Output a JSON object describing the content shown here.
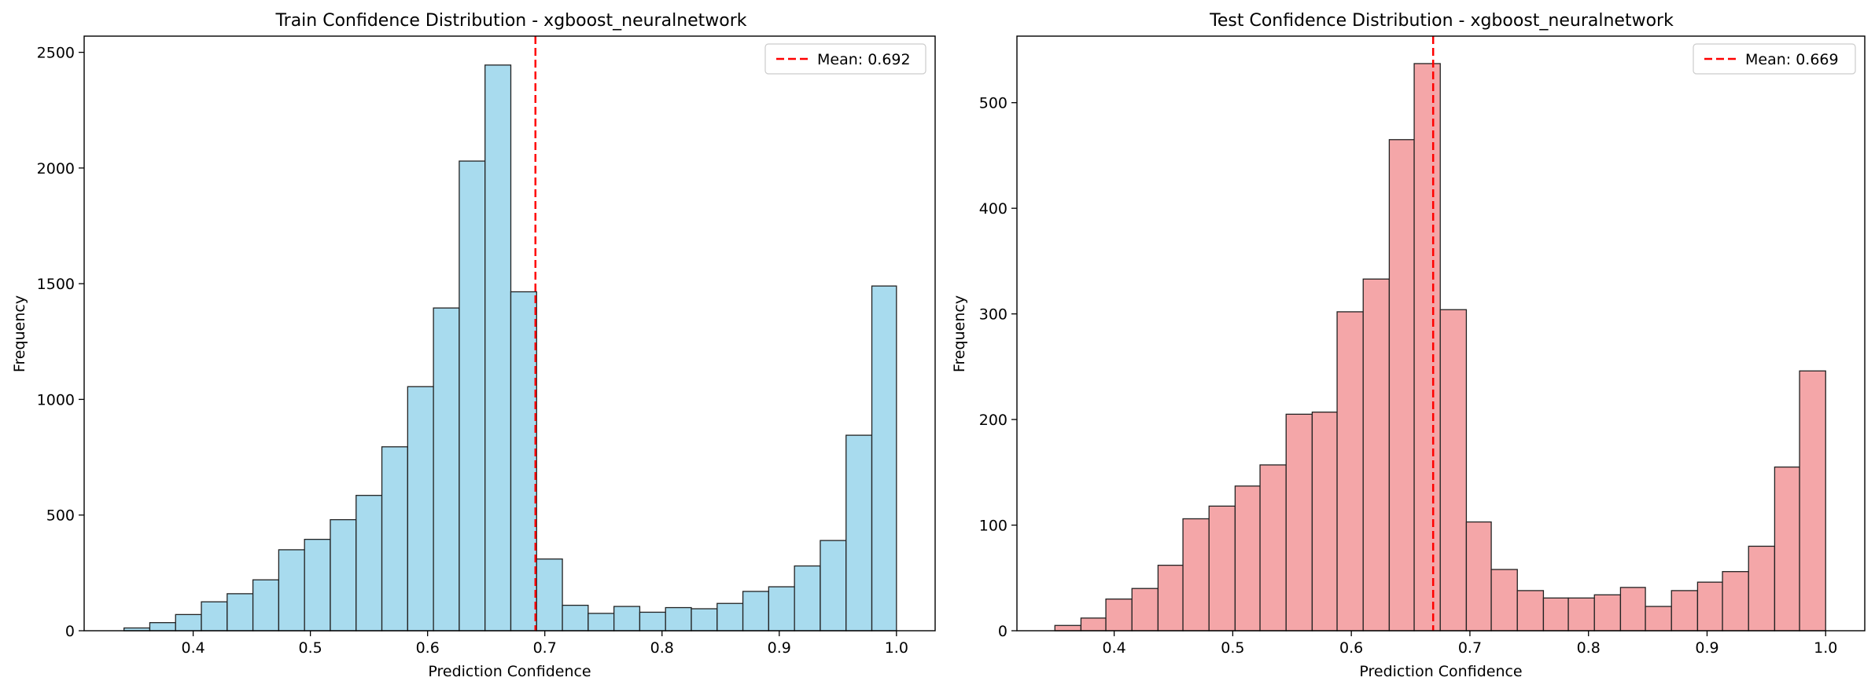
{
  "chart_data": [
    {
      "type": "bar",
      "title": "Train Confidence Distribution - xgboost_neuralnetwork",
      "xlabel": "Prediction Confidence",
      "ylabel": "Frequency",
      "xlim": [
        0.307,
        1.033
      ],
      "ylim": [
        0,
        2570
      ],
      "xticks": [
        0.4,
        0.5,
        0.6,
        0.7,
        0.8,
        0.9,
        1.0
      ],
      "xtick_labels": [
        "0.4",
        "0.5",
        "0.6",
        "0.7",
        "0.8",
        "0.9",
        "1.0"
      ],
      "yticks": [
        0,
        500,
        1000,
        1500,
        2000,
        2500
      ],
      "ytick_labels": [
        "0",
        "500",
        "1000",
        "1500",
        "2000",
        "2500"
      ],
      "bin_edges": [
        0.341,
        0.363,
        0.385,
        0.407,
        0.429,
        0.451,
        0.473,
        0.495,
        0.517,
        0.539,
        0.561,
        0.583,
        0.605,
        0.627,
        0.649,
        0.671,
        0.693,
        0.715,
        0.737,
        0.759,
        0.781,
        0.803,
        0.825,
        0.847,
        0.869,
        0.891,
        0.913,
        0.935,
        0.957,
        0.979,
        1.0
      ],
      "values": [
        12,
        35,
        70,
        125,
        160,
        220,
        350,
        395,
        480,
        585,
        795,
        1055,
        1395,
        2030,
        2445,
        1465,
        310,
        110,
        75,
        105,
        80,
        100,
        95,
        118,
        170,
        190,
        280,
        390,
        845,
        1490
      ],
      "bar_color": "#a8dbee",
      "mean": {
        "value": 0.692,
        "label": "Mean: 0.692",
        "color": "#ff0000"
      },
      "legend_position": "upper right"
    },
    {
      "type": "bar",
      "title": "Test Confidence Distribution - xgboost_neuralnetwork",
      "xlabel": "Prediction Confidence",
      "ylabel": "Frequency",
      "xlim": [
        0.318,
        1.033
      ],
      "ylim": [
        0,
        563
      ],
      "xticks": [
        0.4,
        0.5,
        0.6,
        0.7,
        0.8,
        0.9,
        1.0
      ],
      "xtick_labels": [
        "0.4",
        "0.5",
        "0.6",
        "0.7",
        "0.8",
        "0.9",
        "1.0"
      ],
      "yticks": [
        0,
        100,
        200,
        300,
        400,
        500
      ],
      "ytick_labels": [
        "0",
        "100",
        "200",
        "300",
        "400",
        "500"
      ],
      "bin_edges": [
        0.35,
        0.372,
        0.393,
        0.415,
        0.437,
        0.458,
        0.48,
        0.502,
        0.523,
        0.545,
        0.567,
        0.588,
        0.61,
        0.632,
        0.653,
        0.675,
        0.697,
        0.718,
        0.74,
        0.762,
        0.783,
        0.805,
        0.827,
        0.848,
        0.87,
        0.892,
        0.913,
        0.935,
        0.957,
        0.978,
        1.0
      ],
      "values": [
        5,
        12,
        30,
        40,
        62,
        106,
        118,
        137,
        157,
        205,
        207,
        302,
        333,
        465,
        537,
        304,
        103,
        58,
        38,
        31,
        31,
        34,
        41,
        23,
        38,
        46,
        56,
        80,
        155,
        246
      ],
      "bar_color": "#f4a6a8",
      "mean": {
        "value": 0.669,
        "label": "Mean: 0.669",
        "color": "#ff0000"
      },
      "legend_position": "upper right"
    }
  ]
}
